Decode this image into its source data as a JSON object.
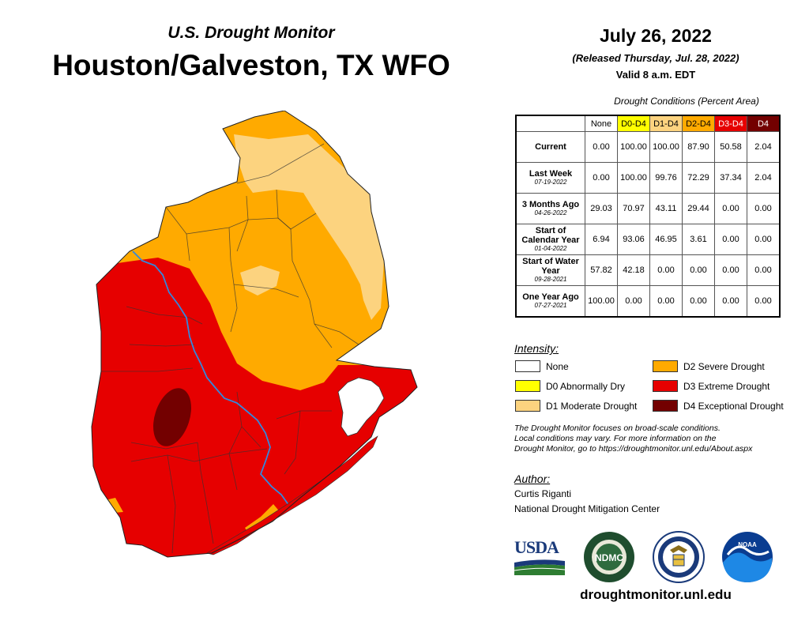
{
  "header": {
    "subtitle": "U.S. Drought Monitor",
    "title": "Houston/Galveston, TX WFO",
    "date": "July 26, 2022",
    "released": "(Released Thursday, Jul. 28, 2022)",
    "valid": "Valid 8 a.m. EDT"
  },
  "colors": {
    "none": "#ffffff",
    "d0": "#ffff00",
    "d1": "#fcd37f",
    "d2": "#ffaa00",
    "d3": "#e60000",
    "d4": "#730000",
    "river": "#3388dd"
  },
  "table": {
    "caption": "Drought Conditions (Percent Area)",
    "columns": [
      "None",
      "D0-D4",
      "D1-D4",
      "D2-D4",
      "D3-D4",
      "D4"
    ],
    "rows": [
      {
        "label": "Current",
        "date": "",
        "values": [
          "0.00",
          "100.00",
          "100.00",
          "87.90",
          "50.58",
          "2.04"
        ]
      },
      {
        "label": "Last Week",
        "date": "07-19-2022",
        "values": [
          "0.00",
          "100.00",
          "99.76",
          "72.29",
          "37.34",
          "2.04"
        ]
      },
      {
        "label": "3 Months Ago",
        "date": "04-26-2022",
        "values": [
          "29.03",
          "70.97",
          "43.11",
          "29.44",
          "0.00",
          "0.00"
        ]
      },
      {
        "label": "Start of Calendar Year",
        "date": "01-04-2022",
        "values": [
          "6.94",
          "93.06",
          "46.95",
          "3.61",
          "0.00",
          "0.00"
        ]
      },
      {
        "label": "Start of Water Year",
        "date": "09-28-2021",
        "values": [
          "57.82",
          "42.18",
          "0.00",
          "0.00",
          "0.00",
          "0.00"
        ]
      },
      {
        "label": "One Year Ago",
        "date": "07-27-2021",
        "values": [
          "100.00",
          "0.00",
          "0.00",
          "0.00",
          "0.00",
          "0.00"
        ]
      }
    ]
  },
  "legend": {
    "title": "Intensity:",
    "items": [
      {
        "key": "none",
        "label": "None"
      },
      {
        "key": "d0",
        "label": "D0 Abnormally Dry"
      },
      {
        "key": "d1",
        "label": "D1 Moderate Drought"
      },
      {
        "key": "d2",
        "label": "D2 Severe Drought"
      },
      {
        "key": "d3",
        "label": "D3 Extreme Drought"
      },
      {
        "key": "d4",
        "label": "D4 Exceptional Drought"
      }
    ]
  },
  "disclaimer": {
    "line1": "The Drought Monitor focuses on broad-scale conditions.",
    "line2": "Local conditions may vary. For more information on the",
    "line3": "Drought Monitor, go to https://droughtmonitor.unl.edu/About.aspx"
  },
  "author": {
    "heading": "Author:",
    "name": "Curtis Riganti",
    "org": "National Drought Mitigation Center"
  },
  "logos": {
    "usda": "USDA",
    "ndmc": "NDMC",
    "noaa": "NOAA",
    "ndmc_ring": "NATIONAL DROUGHT MITIGATION CENTER"
  },
  "footer": {
    "website": "droughtmonitor.unl.edu"
  }
}
